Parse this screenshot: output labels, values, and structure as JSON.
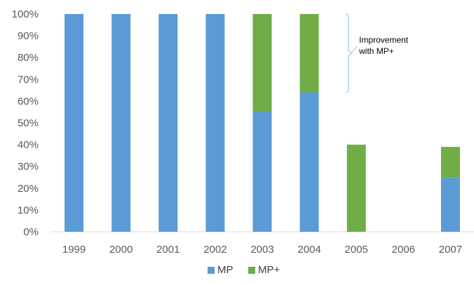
{
  "chart_data": {
    "type": "bar",
    "stacked": true,
    "categories": [
      "1999",
      "2000",
      "2001",
      "2002",
      "2003",
      "2004",
      "2005",
      "2006",
      "2007"
    ],
    "series": [
      {
        "name": "MP",
        "color": "#5b9bd5",
        "values": [
          100,
          100,
          100,
          100,
          55,
          64,
          0,
          0,
          25
        ]
      },
      {
        "name": "MP+",
        "color": "#70ad47",
        "values": [
          0,
          0,
          0,
          0,
          45,
          36,
          40,
          0,
          14
        ]
      }
    ],
    "ylim": [
      0,
      100
    ],
    "y_ticks": [
      "0%",
      "10%",
      "20%",
      "30%",
      "40%",
      "50%",
      "60%",
      "70%",
      "80%",
      "90%",
      "100%"
    ],
    "gridlines": false,
    "legend_position": "bottom",
    "annotation": {
      "lines": [
        "Improvement",
        "with MP+"
      ],
      "spans_category": "2004",
      "spans_range": [
        64,
        100
      ]
    }
  }
}
